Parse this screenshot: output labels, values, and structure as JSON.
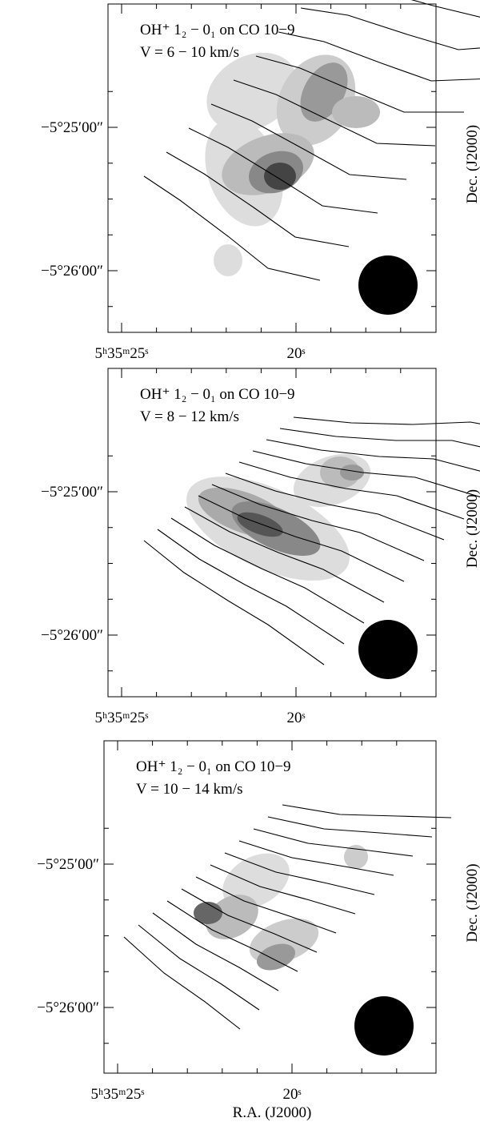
{
  "panels": [
    {
      "title": "OH⁺ 1₂ − 0₁ on CO 10−9",
      "velocity": "V = 6 − 10 km/s",
      "x_ticks": [
        "5ʰ35ᵐ25ˢ",
        "20ˢ"
      ],
      "y_ticks": [
        "−5°25′00″",
        "−5°26′00″"
      ],
      "y_label": "Dec.  (J2000)"
    },
    {
      "title": "OH⁺ 1₂ − 0₁ on CO 10−9",
      "velocity": "V = 8 − 12 km/s",
      "x_ticks": [
        "5ʰ35ᵐ25ˢ",
        "20ˢ"
      ],
      "y_ticks": [
        "−5°25′00″",
        "−5°26′00″"
      ],
      "y_label": "Dec.  (J2000)"
    },
    {
      "title": "OH⁺ 1₂ − 0₁ on CO 10−9",
      "velocity": "V = 10 − 14 km/s",
      "x_ticks": [
        "5ʰ35ᵐ25ˢ",
        "20ˢ"
      ],
      "y_ticks": [
        "−5°25′00″",
        "−5°26′00″"
      ],
      "y_label": "Dec.  (J2000)"
    }
  ],
  "x_label": "R.A. (J2000)"
}
